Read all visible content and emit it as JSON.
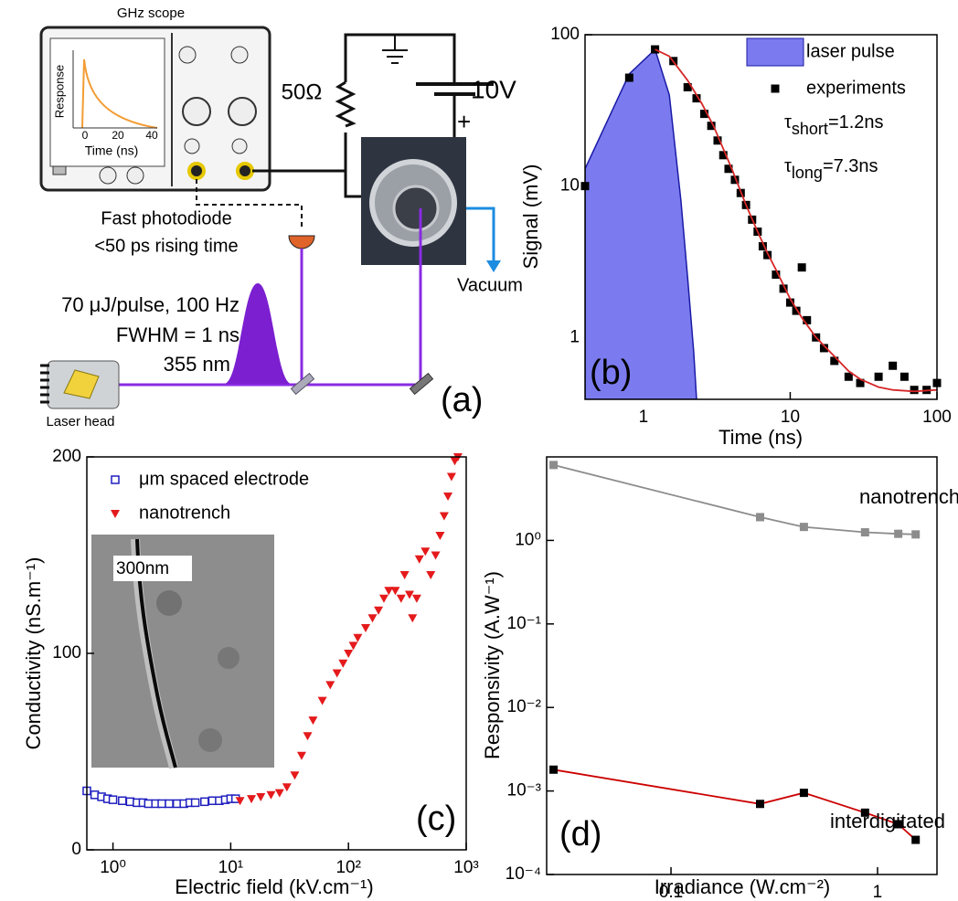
{
  "diagram": {
    "scope_title": "GHz scope",
    "inset_y_label": "Response",
    "inset_x_label": "Time (ns)",
    "inset_ticks": [
      0,
      20,
      40
    ],
    "resistor": "50Ω",
    "battery": "10V",
    "battery_sign": "+",
    "photodiode": "Fast photodiode",
    "photodiode_spec": "<50 ps rising time",
    "vacuum": "Vacuum",
    "laser_energy": "70 μJ/pulse, 100 Hz",
    "laser_fwhm": "FWHM = 1 ns",
    "wavelength": "355 nm",
    "laser_head": "Laser head",
    "panel_label": "(a)"
  },
  "chart_data": [
    {
      "type": "scatter",
      "panel_label": "(b)",
      "x_label": "Time (ns)",
      "y_label": "Signal (mV)",
      "xlog": true,
      "ylog": true,
      "xlim": [
        0.4,
        100
      ],
      "ylim": [
        0.39,
        100
      ],
      "xticks": [
        1,
        10,
        100
      ],
      "yticks": [
        1,
        10,
        100
      ],
      "legend": "upper right",
      "annotations": [
        {
          "symbol": "τ",
          "sub": "short",
          "text": "=1.2ns"
        },
        {
          "symbol": "τ",
          "sub": "long",
          "text": "=7.3ns"
        }
      ],
      "series": [
        {
          "name": "laser pulse",
          "kind": "area",
          "color": "#7b7bef",
          "edge_color": "#1a1aa6",
          "x": [
            0.4,
            0.8,
            1.2,
            1.5,
            1.8,
            2.0,
            2.2,
            2.3
          ],
          "values": [
            13,
            55,
            80,
            40,
            8,
            2.5,
            0.8,
            0.39
          ]
        },
        {
          "name": "experiments",
          "kind": "markers",
          "marker": "square",
          "color": "#000000",
          "x": [
            0.4,
            0.8,
            1.2,
            1.6,
            2.0,
            2.3,
            2.6,
            2.9,
            3.2,
            3.5,
            3.8,
            4.2,
            4.6,
            5.0,
            5.5,
            6,
            6.5,
            7,
            8,
            9,
            10,
            11,
            12,
            13,
            15,
            17,
            20,
            25,
            30,
            40,
            50,
            60,
            70,
            85,
            100
          ],
          "values": [
            10,
            52,
            80,
            67,
            45,
            38,
            30,
            25,
            20,
            16,
            13,
            11,
            9,
            7.5,
            6,
            5,
            4,
            3.5,
            2.6,
            2.1,
            1.7,
            1.5,
            2.9,
            1.3,
            1.0,
            0.85,
            0.7,
            0.55,
            0.5,
            0.55,
            0.65,
            0.55,
            0.45,
            0.45,
            0.5
          ]
        },
        {
          "kind": "line",
          "color": "#d62728",
          "x": [
            1.2,
            1.5,
            2,
            2.5,
            3,
            4,
            5,
            6,
            7,
            8,
            10,
            12,
            15,
            20,
            25,
            30,
            40,
            50,
            70,
            100
          ],
          "values": [
            80,
            72,
            50,
            35,
            25,
            13,
            7.5,
            5,
            3.6,
            2.8,
            1.8,
            1.35,
            1.0,
            0.75,
            0.6,
            0.53,
            0.47,
            0.45,
            0.44,
            0.45
          ]
        }
      ]
    },
    {
      "type": "scatter",
      "panel_label": "(c)",
      "x_label": "Electric field (kV.cm⁻¹)",
      "y_label": "Conductivity (nS.m⁻¹)",
      "xlog": true,
      "ylog": false,
      "xlim": [
        0.6,
        1000
      ],
      "ylim": [
        0,
        200
      ],
      "xticks": [
        {
          "value": 1,
          "label": "10⁰"
        },
        {
          "value": 10,
          "label": "10¹"
        },
        {
          "value": 100,
          "label": "10²"
        },
        {
          "value": 1000,
          "label": "10³"
        }
      ],
      "yticks": [
        0,
        100,
        200
      ],
      "legend": "upper left",
      "inset_label": "300nm",
      "series": [
        {
          "name": "μm spaced electrode",
          "kind": "markers",
          "marker": "open-square",
          "color": "#1f1fbf",
          "x": [
            0.6,
            0.7,
            0.8,
            0.9,
            1.0,
            1.2,
            1.4,
            1.6,
            1.8,
            2.0,
            2.3,
            2.6,
            3.0,
            3.5,
            4.0,
            4.5,
            5,
            6,
            7,
            8,
            9,
            10,
            11
          ],
          "values": [
            30,
            28,
            27,
            26,
            25.5,
            25,
            24.5,
            24,
            24,
            23.5,
            23.5,
            23.5,
            23.5,
            23.5,
            23.5,
            24,
            24,
            24.5,
            25,
            25,
            25.5,
            26,
            26
          ]
        },
        {
          "name": "nanotrench",
          "kind": "markers",
          "marker": "triangle-down",
          "color": "#e41a1c",
          "x": [
            12,
            15,
            18,
            22,
            26,
            30,
            35,
            40,
            45,
            50,
            60,
            70,
            80,
            90,
            100,
            110,
            120,
            140,
            160,
            180,
            200,
            220,
            250,
            280,
            300,
            330,
            350,
            380,
            400,
            450,
            500,
            550,
            600,
            650,
            700,
            750,
            800,
            850
          ],
          "values": [
            25,
            26,
            27,
            28,
            29,
            32,
            38,
            48,
            58,
            66,
            76,
            84,
            90,
            95,
            100,
            104,
            108,
            113,
            118,
            122,
            128,
            132,
            132,
            128,
            140,
            130,
            118,
            128,
            148,
            152,
            140,
            150,
            160,
            170,
            180,
            190,
            198,
            200
          ]
        }
      ]
    },
    {
      "type": "scatter",
      "panel_label": "(d)",
      "x_label": "Irradiance (W.cm⁻²)",
      "y_label": "Responsivity (A.W⁻¹)",
      "xlog": true,
      "ylog": true,
      "xlim": [
        0.025,
        1.94
      ],
      "ylim": [
        0.0001,
        10
      ],
      "xticks": [
        0.1,
        1
      ],
      "yticks": [
        {
          "value": 0.0001,
          "label": "10⁻⁴"
        },
        {
          "value": 0.001,
          "label": "10⁻³"
        },
        {
          "value": 0.01,
          "label": "10⁻²"
        },
        {
          "value": 0.1,
          "label": "10⁻¹"
        },
        {
          "value": 1,
          "label": "10⁰"
        }
      ],
      "series": [
        {
          "name": "nanotrench",
          "kind": "line+markers",
          "marker": "square",
          "color": "#8c8c8c",
          "marker_color": "#8c8c8c",
          "x": [
            0.027,
            0.27,
            0.44,
            0.87,
            1.26,
            1.53
          ],
          "values": [
            8,
            1.9,
            1.45,
            1.25,
            1.2,
            1.18
          ]
        },
        {
          "name": "interdigitated",
          "kind": "line+markers",
          "marker": "square",
          "color": "#cc0000",
          "marker_color": "#000000",
          "x": [
            0.027,
            0.27,
            0.44,
            0.87,
            1.26,
            1.53
          ],
          "values": [
            0.0018,
            0.0007,
            0.00095,
            0.00055,
            0.0004,
            0.00026
          ]
        }
      ]
    }
  ]
}
